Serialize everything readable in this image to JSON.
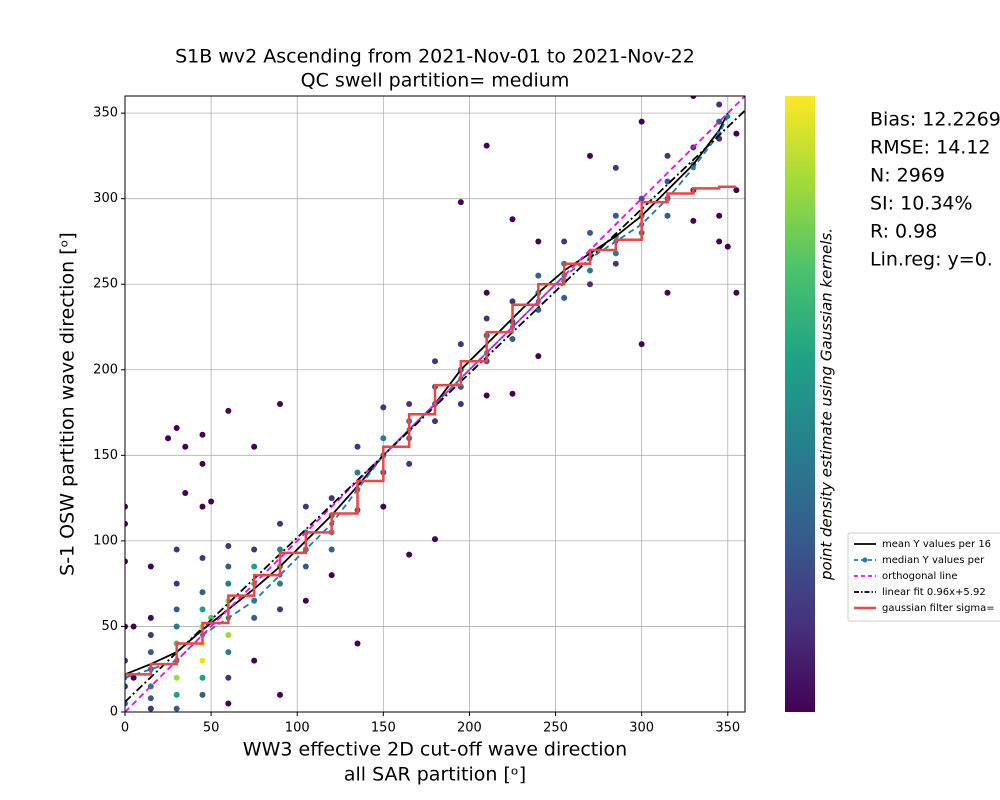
{
  "chart_data": {
    "type": "scatter",
    "title": "S1B wv2 Ascending from 2021-Nov-01 to 2021-Nov-22",
    "subtitle": "QC swell partition= medium",
    "xlabel": [
      "WW3 effective 2D cut-off wave direction",
      "all SAR partition [ᵒ]"
    ],
    "ylabel": "S-1 OSW partition wave direction [ᵒ]",
    "colorbar_label": "point density estimate using Gaussian kernels.",
    "colorbar_colors": [
      "#440154",
      "#46327e",
      "#365c8d",
      "#277f8e",
      "#1fa187",
      "#4ac16d",
      "#a0da39",
      "#fde725"
    ],
    "stats": [
      "Bias: 12.2269",
      "RMSE: 14.12",
      "N: 2969",
      "SI: 10.34%",
      "R: 0.98",
      "Lin.reg: y=0."
    ],
    "xlim": [
      0,
      360
    ],
    "ylim": [
      0,
      360
    ],
    "xticks": [
      0,
      50,
      100,
      150,
      200,
      250,
      300,
      350
    ],
    "yticks": [
      0,
      50,
      100,
      150,
      200,
      250,
      300,
      350
    ],
    "grid": true,
    "legend": "right",
    "scatter": {
      "x": [
        0,
        0,
        0,
        0,
        0,
        0,
        0,
        5,
        5,
        15,
        15,
        15,
        15,
        15,
        15,
        15,
        15,
        25,
        30,
        30,
        30,
        30,
        30,
        30,
        30,
        30,
        30,
        30,
        35,
        35,
        45,
        45,
        45,
        45,
        45,
        45,
        45,
        45,
        45,
        45,
        45,
        50,
        50,
        60,
        60,
        60,
        60,
        60,
        60,
        60,
        60,
        60,
        60,
        75,
        75,
        75,
        75,
        75,
        75,
        75,
        90,
        90,
        90,
        90,
        90,
        90,
        90,
        105,
        105,
        105,
        105,
        105,
        120,
        120,
        120,
        120,
        120,
        135,
        135,
        135,
        135,
        135,
        150,
        150,
        150,
        150,
        150,
        165,
        165,
        165,
        165,
        165,
        180,
        180,
        180,
        180,
        180,
        195,
        195,
        195,
        195,
        195,
        210,
        210,
        210,
        210,
        210,
        210,
        225,
        225,
        225,
        225,
        225,
        240,
        240,
        240,
        240,
        240,
        255,
        255,
        255,
        255,
        270,
        270,
        270,
        270,
        270,
        285,
        285,
        285,
        285,
        285,
        300,
        300,
        300,
        300,
        300,
        315,
        315,
        315,
        315,
        315,
        330,
        330,
        330,
        330,
        330,
        345,
        345,
        345,
        345,
        345,
        355,
        355,
        355,
        350
      ],
      "y": [
        120,
        110,
        88,
        50,
        30,
        15,
        5,
        50,
        20,
        85,
        55,
        45,
        35,
        25,
        15,
        8,
        2,
        160,
        166,
        95,
        75,
        60,
        50,
        40,
        30,
        20,
        10,
        2,
        155,
        128,
        162,
        145,
        120,
        90,
        70,
        60,
        50,
        40,
        30,
        20,
        10,
        123,
        55,
        176,
        97,
        85,
        75,
        65,
        55,
        45,
        35,
        20,
        5,
        155,
        95,
        85,
        75,
        65,
        55,
        30,
        180,
        110,
        95,
        85,
        75,
        60,
        10,
        120,
        105,
        95,
        85,
        65,
        125,
        115,
        105,
        95,
        80,
        155,
        140,
        130,
        118,
        40,
        178,
        160,
        150,
        140,
        120,
        180,
        170,
        160,
        145,
        92,
        205,
        190,
        180,
        170,
        101,
        298,
        215,
        200,
        190,
        180,
        331,
        245,
        230,
        220,
        205,
        185,
        288,
        240,
        228,
        218,
        186,
        275,
        255,
        245,
        235,
        208,
        275,
        262,
        252,
        242,
        325,
        280,
        268,
        258,
        250,
        318,
        290,
        278,
        268,
        262,
        345,
        300,
        290,
        280,
        215,
        325,
        310,
        300,
        290,
        245,
        360,
        330,
        320,
        305,
        287,
        355,
        345,
        335,
        290,
        275,
        338,
        305,
        245,
        272
      ],
      "colors": [
        "#440154",
        "#440154",
        "#440154",
        "#440154",
        "#46327e",
        "#46327e",
        "#365c8d",
        "#440154",
        "#440154",
        "#440154",
        "#440154",
        "#46327e",
        "#365c8d",
        "#277f8e",
        "#277f8e",
        "#365c8d",
        "#46327e",
        "#440154",
        "#440154",
        "#46327e",
        "#46327e",
        "#365c8d",
        "#277f8e",
        "#4ac16d",
        "#d0e11c",
        "#a0da39",
        "#1fa187",
        "#365c8d",
        "#440154",
        "#440154",
        "#440154",
        "#440154",
        "#440154",
        "#46327e",
        "#365c8d",
        "#1fa187",
        "#a0da39",
        "#fde725",
        "#e8e419",
        "#1fa187",
        "#365c8d",
        "#440154",
        "#4ac16d",
        "#440154",
        "#46327e",
        "#365c8d",
        "#277f8e",
        "#a0da39",
        "#e8e419",
        "#a0da39",
        "#277f8e",
        "#46327e",
        "#440154",
        "#440154",
        "#46327e",
        "#1fa187",
        "#4ac16d",
        "#1fa187",
        "#365c8d",
        "#440154",
        "#440154",
        "#46327e",
        "#277f8e",
        "#1fa187",
        "#277f8e",
        "#46327e",
        "#440154",
        "#46327e",
        "#277f8e",
        "#1fa187",
        "#365c8d",
        "#440154",
        "#46327e",
        "#277f8e",
        "#1fa187",
        "#365c8d",
        "#440154",
        "#46327e",
        "#277f8e",
        "#1fa187",
        "#365c8d",
        "#440154",
        "#46327e",
        "#277f8e",
        "#277f8e",
        "#365c8d",
        "#440154",
        "#46327e",
        "#277f8e",
        "#277f8e",
        "#46327e",
        "#440154",
        "#46327e",
        "#365c8d",
        "#365c8d",
        "#46327e",
        "#440154",
        "#440154",
        "#46327e",
        "#365c8d",
        "#365c8d",
        "#46327e",
        "#440154",
        "#440154",
        "#46327e",
        "#365c8d",
        "#365c8d",
        "#440154",
        "#440154",
        "#46327e",
        "#365c8d",
        "#365c8d",
        "#440154",
        "#440154",
        "#365c8d",
        "#277f8e",
        "#365c8d",
        "#440154",
        "#46327e",
        "#277f8e",
        "#1fa187",
        "#365c8d",
        "#440154",
        "#365c8d",
        "#1fa187",
        "#277f8e",
        "#46327e",
        "#46327e",
        "#365c8d",
        "#1fa187",
        "#277f8e",
        "#46327e",
        "#440154",
        "#365c8d",
        "#1fa187",
        "#277f8e",
        "#440154",
        "#46327e",
        "#365c8d",
        "#277f8e",
        "#365c8d",
        "#440154",
        "#440154",
        "#46327e",
        "#365c8d",
        "#46327e",
        "#440154",
        "#46327e",
        "#365c8d",
        "#46327e",
        "#440154",
        "#440154",
        "#440154",
        "#440154",
        "#440154",
        "#440154"
      ]
    },
    "series": [
      {
        "name": "mean Y values per 16",
        "color": "#000000",
        "linestyle": "solid",
        "marker": false,
        "x": [
          0,
          15,
          30,
          45,
          60,
          75,
          90,
          105,
          120,
          135,
          150,
          165,
          180,
          195,
          210,
          225,
          240,
          255,
          270,
          285,
          300,
          315,
          330,
          345,
          350
        ],
        "y": [
          22,
          28,
          35,
          48,
          60,
          72,
          85,
          100,
          115,
          132,
          150,
          165,
          180,
          200,
          215,
          230,
          245,
          258,
          268,
          278,
          290,
          305,
          320,
          340,
          350
        ]
      },
      {
        "name": "median Y values per",
        "color": "#1f77b4",
        "linestyle": "dashed",
        "marker": true,
        "x": [
          0,
          15,
          30,
          45,
          60,
          75,
          90,
          105,
          120,
          135,
          150,
          165,
          180,
          195,
          210,
          225,
          240,
          255,
          270,
          285,
          300,
          315,
          330,
          345,
          350
        ],
        "y": [
          20,
          25,
          30,
          45,
          55,
          65,
          80,
          95,
          110,
          130,
          150,
          165,
          180,
          195,
          210,
          225,
          240,
          255,
          265,
          275,
          285,
          300,
          318,
          338,
          348
        ]
      },
      {
        "name": "orthogonal line",
        "color": "#ff00ff",
        "linestyle": "dashed",
        "marker": false,
        "x": [
          0,
          360
        ],
        "y": [
          0,
          360
        ]
      },
      {
        "name": "linear fit 0.96x+5.92",
        "color": "#000000",
        "linestyle": "dashdot",
        "marker": false,
        "x": [
          0,
          360
        ],
        "y": [
          5.92,
          351.52
        ]
      },
      {
        "name": "gaussian filter sigma=",
        "color": "#ef4444",
        "linestyle": "solid",
        "marker": false,
        "x": [
          0,
          15,
          15,
          30,
          30,
          45,
          45,
          60,
          60,
          75,
          75,
          90,
          90,
          105,
          105,
          120,
          120,
          135,
          135,
          150,
          150,
          165,
          165,
          180,
          180,
          195,
          195,
          210,
          210,
          225,
          225,
          240,
          240,
          255,
          255,
          270,
          270,
          285,
          285,
          300,
          300,
          315,
          315,
          330,
          330,
          345,
          345,
          355
        ],
        "y": [
          22,
          22,
          28,
          28,
          40,
          40,
          52,
          52,
          68,
          68,
          80,
          80,
          93,
          93,
          105,
          105,
          116,
          116,
          135,
          135,
          155,
          155,
          174,
          174,
          191,
          191,
          205,
          205,
          222,
          222,
          238,
          238,
          250,
          250,
          262,
          262,
          270,
          270,
          276,
          276,
          298,
          298,
          303,
          303,
          306,
          306,
          307,
          307
        ]
      }
    ]
  }
}
